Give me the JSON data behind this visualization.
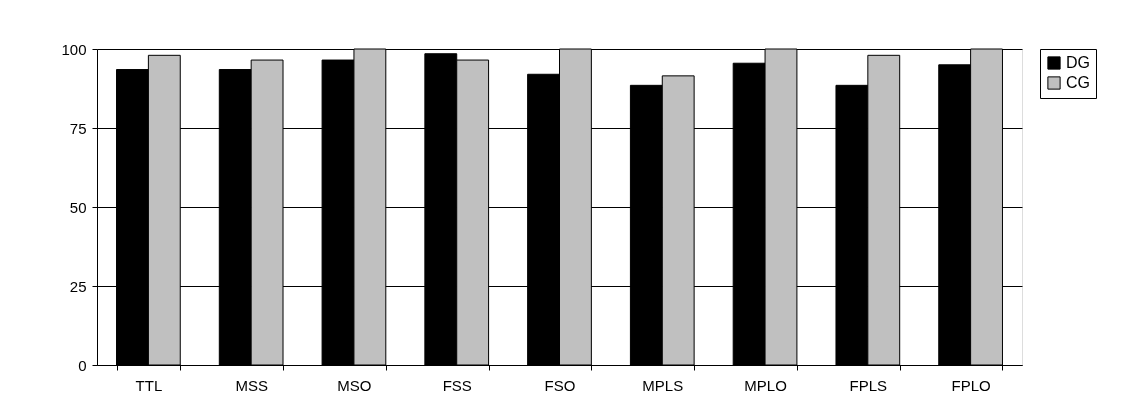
{
  "chart_data": {
    "type": "bar",
    "categories": [
      "TTL",
      "MSS",
      "MSO",
      "FSS",
      "FSO",
      "MPLS",
      "MPLO",
      "FPLS",
      "FPLO"
    ],
    "series": [
      {
        "name": "DG",
        "color": "#000000",
        "values": [
          93.5,
          93.5,
          96.5,
          98.5,
          92,
          88.5,
          95.5,
          88.5,
          95
        ]
      },
      {
        "name": "CG",
        "color": "#c0c0c0",
        "values": [
          98,
          96.5,
          100,
          96.5,
          100,
          91.5,
          100,
          98,
          100
        ]
      }
    ],
    "ylim": [
      0,
      100
    ],
    "yticks": [
      0,
      25,
      50,
      75,
      100
    ],
    "grid": "y",
    "legend": "right"
  }
}
